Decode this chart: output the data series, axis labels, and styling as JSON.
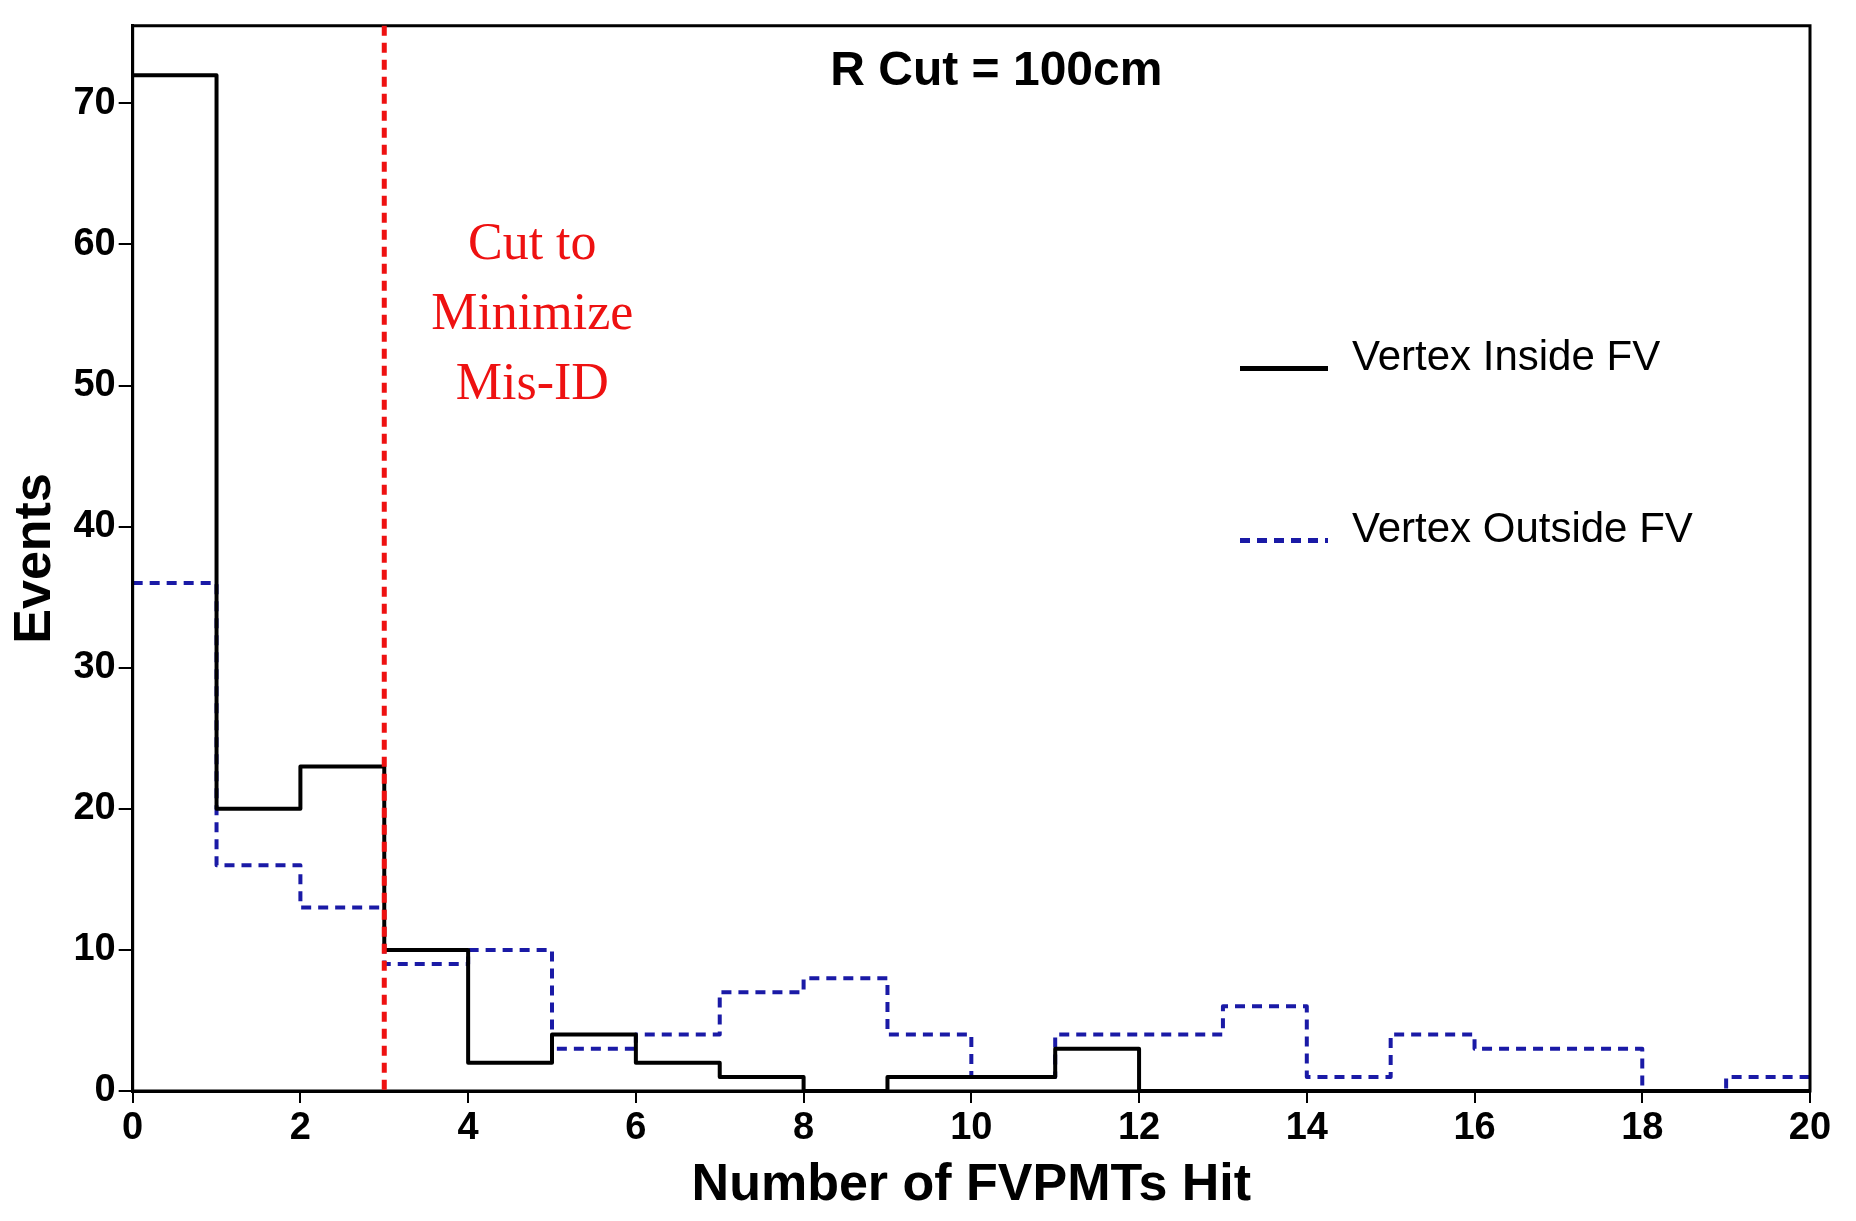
{
  "chart_data": {
    "type": "histogram",
    "title": "R Cut = 100cm",
    "xlabel": "Number of FVPMTs Hit",
    "ylabel": "Events",
    "bins": [
      0,
      1,
      2,
      3,
      4,
      5,
      6,
      7,
      8,
      9,
      10,
      11,
      12,
      13,
      14,
      15,
      16,
      17,
      18,
      19,
      20
    ],
    "series": [
      {
        "name": "Vertex Inside FV",
        "color": "#000000",
        "line_style": "solid",
        "values": [
          72,
          20,
          23,
          10,
          2,
          4,
          2,
          1,
          0,
          1,
          1,
          3,
          0,
          0,
          0,
          0,
          0,
          0,
          0,
          0
        ]
      },
      {
        "name": "Vertex Outside FV",
        "color": "#1a1aa6",
        "line_style": "dashed",
        "values": [
          36,
          16,
          13,
          9,
          10,
          3,
          4,
          7,
          8,
          4,
          1,
          4,
          4,
          6,
          1,
          4,
          3,
          3,
          0,
          1
        ]
      }
    ],
    "xlim": [
      0,
      20
    ],
    "xticks": [
      0,
      2,
      4,
      6,
      8,
      10,
      12,
      14,
      16,
      18,
      20
    ],
    "ylim": [
      0,
      75.5
    ],
    "yticks": [
      0,
      10,
      20,
      30,
      40,
      50,
      60,
      70
    ],
    "ref_lines": [
      {
        "axis": "x",
        "value": 3,
        "label": "Cut to Minimize Mis-ID",
        "color": "#ee1111",
        "line_style": "dashed"
      }
    ],
    "grid": false,
    "legend": "right"
  }
}
